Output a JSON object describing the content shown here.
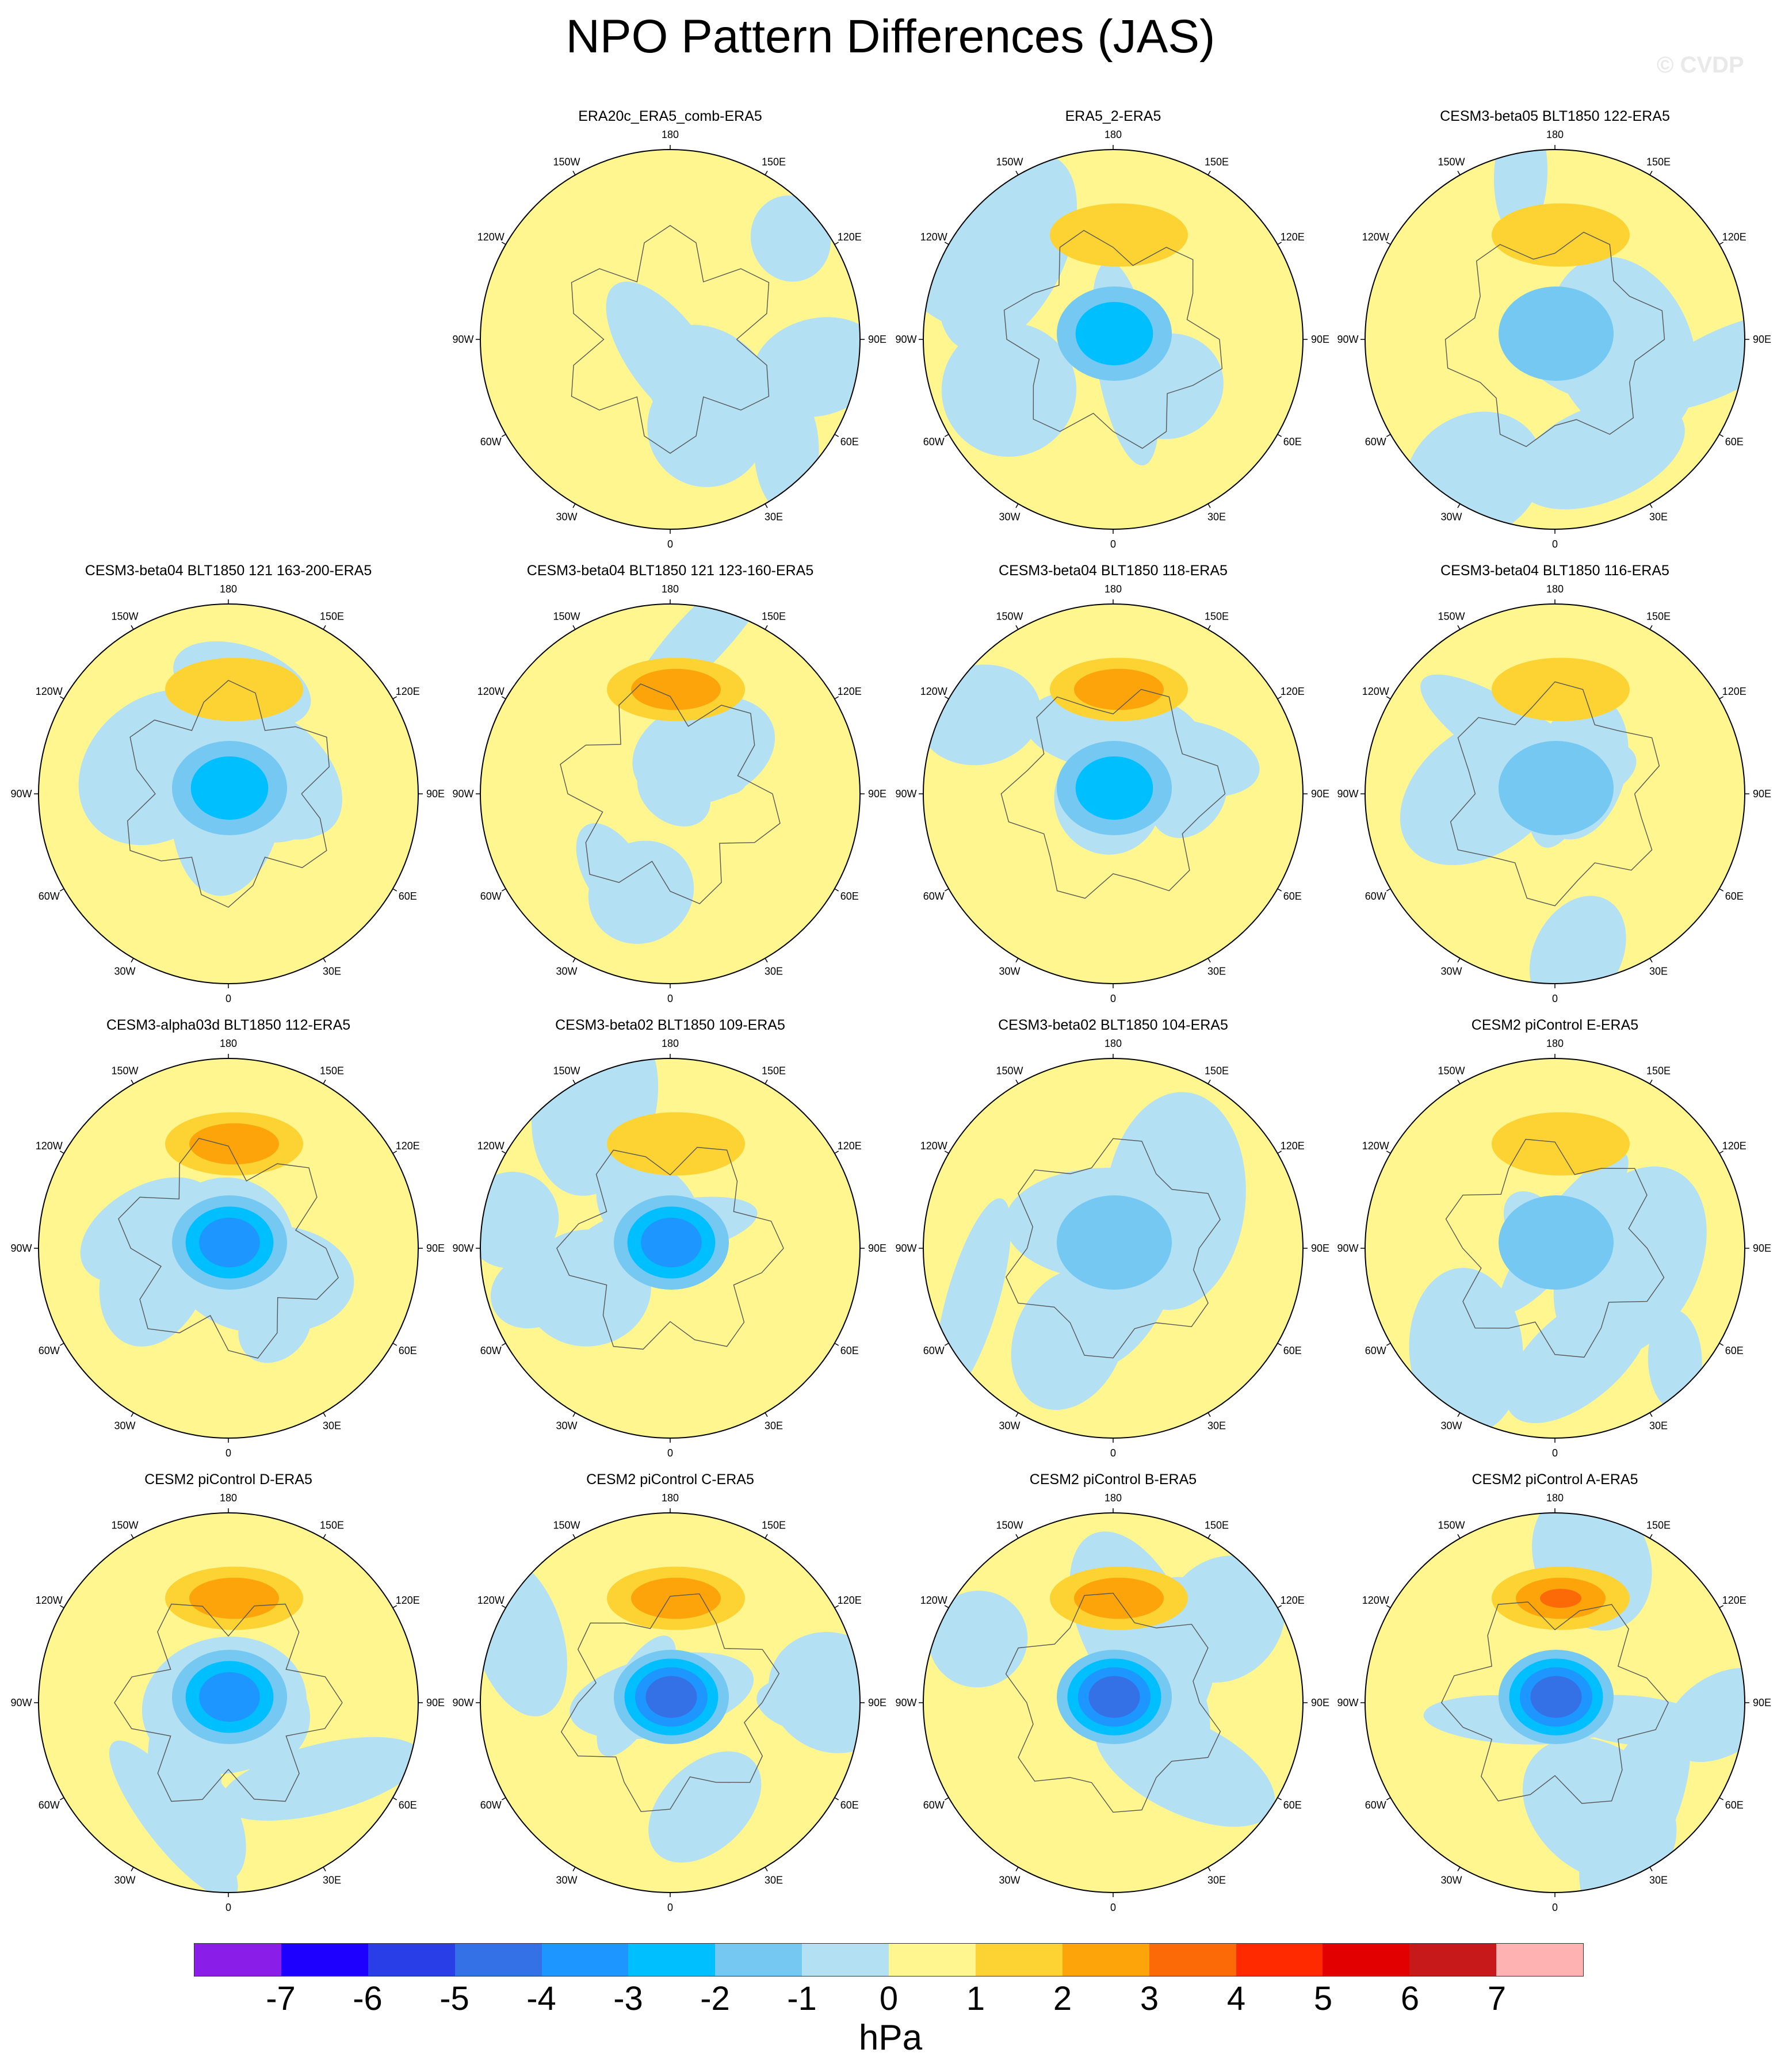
{
  "title": "NPO Pattern Differences (JAS)",
  "watermark": "© CVDP",
  "units": "hPa",
  "colorbar": {
    "ticks": [
      "-7",
      "-6",
      "-5",
      "-4",
      "-3",
      "-2",
      "-1",
      "0",
      "1",
      "2",
      "3",
      "4",
      "5",
      "6",
      "7"
    ],
    "colors": [
      "#8a1ee8",
      "#1e00ff",
      "#2a3ee8",
      "#3471e6",
      "#1e96ff",
      "#00bfff",
      "#75c8f2",
      "#b4e0f4",
      "#fff68f",
      "#fcd332",
      "#fca40a",
      "#fb6a06",
      "#ff2a00",
      "#e20000",
      "#c8191a",
      "#ffb2b2"
    ]
  },
  "longitude_labels": [
    "180",
    "150E",
    "120E",
    "90E",
    "60E",
    "30E",
    "0",
    "30W",
    "60W",
    "90W",
    "120W",
    "150W"
  ],
  "panels": [
    {
      "title": "ERA20c_ERA5_comb-ERA5",
      "row": 0,
      "col": 1,
      "max_negative": -1,
      "max_positive": 0
    },
    {
      "title": "ERA5_2-ERA5",
      "row": 0,
      "col": 2,
      "max_negative": -3,
      "max_positive": 1
    },
    {
      "title": "CESM3-beta05 BLT1850 122-ERA5",
      "row": 0,
      "col": 3,
      "max_negative": -2,
      "max_positive": 1
    },
    {
      "title": "CESM3-beta04 BLT1850 121 163-200-ERA5",
      "row": 1,
      "col": 0,
      "max_negative": -3,
      "max_positive": 1
    },
    {
      "title": "CESM3-beta04 BLT1850 121 123-160-ERA5",
      "row": 1,
      "col": 1,
      "max_negative": -1,
      "max_positive": 2
    },
    {
      "title": "CESM3-beta04 BLT1850 118-ERA5",
      "row": 1,
      "col": 2,
      "max_negative": -3,
      "max_positive": 2
    },
    {
      "title": "CESM3-beta04 BLT1850 116-ERA5",
      "row": 1,
      "col": 3,
      "max_negative": -2,
      "max_positive": 1
    },
    {
      "title": "CESM3-alpha03d BLT1850 112-ERA5",
      "row": 2,
      "col": 0,
      "max_negative": -4,
      "max_positive": 2
    },
    {
      "title": "CESM3-beta02 BLT1850 109-ERA5",
      "row": 2,
      "col": 1,
      "max_negative": -4,
      "max_positive": 1
    },
    {
      "title": "CESM3-beta02 BLT1850 104-ERA5",
      "row": 2,
      "col": 2,
      "max_negative": -2,
      "max_positive": 0
    },
    {
      "title": "CESM2 piControl E-ERA5",
      "row": 2,
      "col": 3,
      "max_negative": -2,
      "max_positive": 1
    },
    {
      "title": "CESM2 piControl D-ERA5",
      "row": 3,
      "col": 0,
      "max_negative": -4,
      "max_positive": 2
    },
    {
      "title": "CESM2 piControl C-ERA5",
      "row": 3,
      "col": 1,
      "max_negative": -5,
      "max_positive": 2
    },
    {
      "title": "CESM2 piControl B-ERA5",
      "row": 3,
      "col": 2,
      "max_negative": -5,
      "max_positive": 2
    },
    {
      "title": "CESM2 piControl A-ERA5",
      "row": 3,
      "col": 3,
      "max_negative": -5,
      "max_positive": 3
    }
  ]
}
